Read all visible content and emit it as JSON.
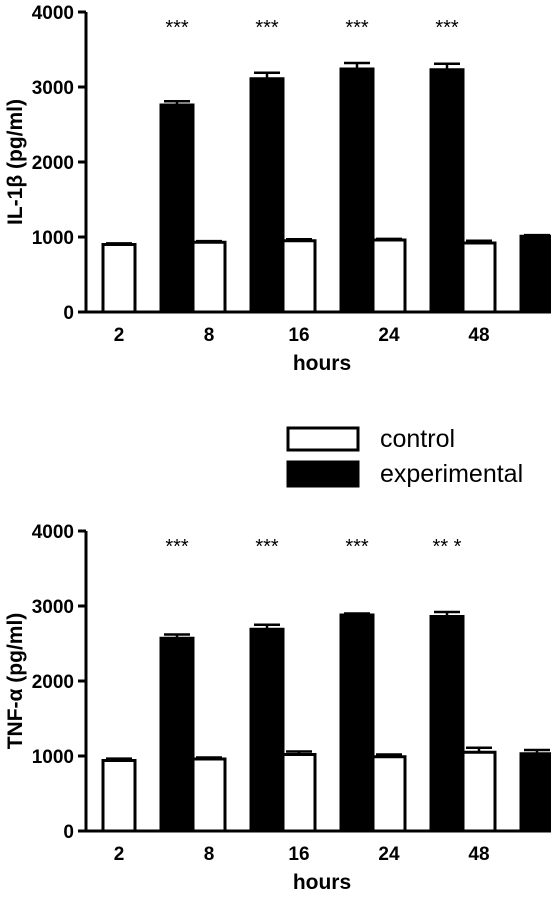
{
  "legend": {
    "items": [
      {
        "label": "control",
        "color": "#ffffff"
      },
      {
        "label": "experimental",
        "color": "#000000"
      }
    ]
  },
  "chart_data": [
    {
      "type": "bar",
      "ylabel": "IL-1β (pg/ml)",
      "xlabel": "hours",
      "categories": [
        "2",
        "8",
        "16",
        "24",
        "48"
      ],
      "ylim": [
        0,
        4000
      ],
      "yticks": [
        0,
        1000,
        2000,
        3000,
        4000
      ],
      "series": [
        {
          "name": "control",
          "color": "#ffffff",
          "values": [
            900,
            930,
            950,
            960,
            920
          ],
          "errors": [
            15,
            15,
            20,
            15,
            30
          ]
        },
        {
          "name": "experimental",
          "color": "#000000",
          "values": [
            2760,
            3110,
            3240,
            3230,
            1010
          ],
          "errors": [
            50,
            80,
            80,
            80,
            15
          ]
        }
      ],
      "annotations": [
        "***",
        "***",
        "***",
        "***",
        ""
      ]
    },
    {
      "type": "bar",
      "ylabel": "TNF-α (pg/ml)",
      "xlabel": "hours",
      "categories": [
        "2",
        "8",
        "16",
        "24",
        "48"
      ],
      "ylim": [
        0,
        4000
      ],
      "yticks": [
        0,
        1000,
        2000,
        3000,
        4000
      ],
      "series": [
        {
          "name": "control",
          "color": "#ffffff",
          "values": [
            940,
            960,
            1020,
            990,
            1050
          ],
          "errors": [
            25,
            20,
            40,
            30,
            60
          ]
        },
        {
          "name": "experimental",
          "color": "#000000",
          "values": [
            2570,
            2690,
            2880,
            2860,
            1030
          ],
          "errors": [
            50,
            60,
            20,
            60,
            50
          ]
        }
      ],
      "annotations": [
        "***",
        "***",
        "***",
        "** *",
        ""
      ]
    }
  ]
}
